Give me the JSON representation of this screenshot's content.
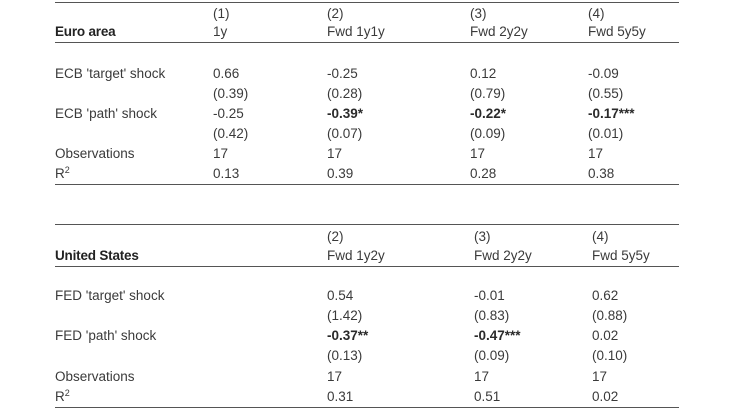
{
  "euro": {
    "title": "Euro area",
    "col_nums": [
      "(1)",
      "(2)",
      "(3)",
      "(4)"
    ],
    "col_names": [
      "1y",
      "Fwd 1y1y",
      "Fwd 2y2y",
      "Fwd 5y5y"
    ],
    "rows": [
      {
        "label": "ECB 'target' shock",
        "vals": [
          "0.66",
          "-0.25",
          "0.12",
          "-0.09"
        ],
        "bold": [
          false,
          false,
          false,
          false
        ]
      },
      {
        "label": "",
        "vals": [
          "(0.39)",
          "(0.28)",
          "(0.79)",
          "(0.55)"
        ],
        "bold": [
          false,
          false,
          false,
          false
        ]
      },
      {
        "label": "ECB 'path' shock",
        "vals": [
          "-0.25",
          "-0.39*",
          "-0.22*",
          "-0.17***"
        ],
        "bold": [
          false,
          true,
          true,
          true
        ]
      },
      {
        "label": "",
        "vals": [
          "(0.42)",
          "(0.07)",
          "(0.09)",
          "(0.01)"
        ],
        "bold": [
          false,
          false,
          false,
          false
        ]
      },
      {
        "label": "Observations",
        "vals": [
          "17",
          "17",
          "17",
          "17"
        ],
        "bold": [
          false,
          false,
          false,
          false
        ]
      },
      {
        "label": "R",
        "sup": "2",
        "vals": [
          "0.13",
          "0.39",
          "0.28",
          "0.38"
        ],
        "bold": [
          false,
          false,
          false,
          false
        ]
      }
    ]
  },
  "us": {
    "title": "United States",
    "col_nums": [
      "(2)",
      "(3)",
      "(4)"
    ],
    "col_names": [
      "Fwd 1y2y",
      "Fwd 2y2y",
      "Fwd 5y5y"
    ],
    "rows": [
      {
        "label": "FED 'target' shock",
        "vals": [
          "0.54",
          "-0.01",
          "0.62"
        ],
        "bold": [
          false,
          false,
          false
        ]
      },
      {
        "label": "",
        "vals": [
          "(1.42)",
          "(0.83)",
          "(0.88)"
        ],
        "bold": [
          false,
          false,
          false
        ]
      },
      {
        "label": "FED 'path' shock",
        "vals": [
          "-0.37**",
          "-0.47***",
          "0.02"
        ],
        "bold": [
          true,
          true,
          false
        ]
      },
      {
        "label": "",
        "vals": [
          "(0.13)",
          "(0.09)",
          "(0.10)"
        ],
        "bold": [
          false,
          false,
          false
        ]
      },
      {
        "label": "Observations",
        "vals": [
          "17",
          "17",
          "17"
        ],
        "bold": [
          false,
          false,
          false
        ]
      },
      {
        "label": "R",
        "sup": "2",
        "vals": [
          "0.31",
          "0.51",
          "0.02"
        ],
        "bold": [
          false,
          false,
          false
        ]
      }
    ]
  }
}
